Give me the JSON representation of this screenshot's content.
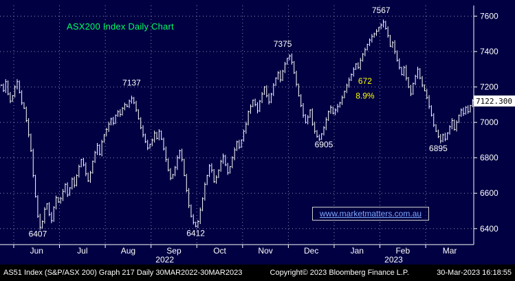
{
  "header": {
    "title": "ASX200 Index Daily Chart",
    "title_color": "#00ff66"
  },
  "watermark": {
    "text": "www.marketmatters.com.au"
  },
  "axis": {
    "last_price_label": "7122.300"
  },
  "footer": {
    "left": "AS51 Index (S&P/ASX 200) Graph 217  Daily 30MAR2022-30MAR2023",
    "center": "Copyright© 2023 Bloomberg Finance L.P.",
    "right": "30-Mar-2023 16:18:55"
  },
  "colors": {
    "background": "#000042",
    "bars": "#ffffff",
    "grid": "#8f8fc0",
    "title_green": "#00ff66",
    "annotation_yellow": "#ffff00",
    "watermark_blue": "#7fa8ff"
  },
  "chart_data": {
    "type": "ohlc-bar",
    "title": "ASX200 Index Daily Chart",
    "xlabel": "",
    "ylabel": "",
    "ylim": [
      6310,
      7660
    ],
    "y_gridlines": [
      7600,
      7400,
      7200,
      7000,
      6800,
      6600,
      6400
    ],
    "last_price": 7122.3,
    "months": [
      {
        "label": "",
        "closes": [
          7210,
          7180,
          7230,
          7160,
          7120,
          7150
        ]
      },
      {
        "label": "Jun",
        "closes": [
          7200,
          7230,
          7170,
          7110,
          7080,
          7010,
          6930,
          6840,
          6700,
          6580,
          6470,
          6407,
          6440,
          6510,
          6540,
          6480,
          6445,
          6520,
          6575,
          6550
        ]
      },
      {
        "label": "Jul",
        "closes": [
          6570,
          6610,
          6650,
          6590,
          6630,
          6680,
          6645,
          6700,
          6750,
          6790,
          6760,
          6710,
          6670,
          6715,
          6780,
          6830,
          6870,
          6820,
          6890,
          6930
        ]
      },
      {
        "label": "Aug",
        "closes": [
          6960,
          6990,
          7020,
          6995,
          7040,
          7060,
          7045,
          7080,
          7100,
          7090,
          7120,
          7137,
          7110,
          7070,
          7020,
          6970,
          6930,
          6890,
          6855,
          6875
        ]
      },
      {
        "label": "Sep",
        "closes": [
          6900,
          6940,
          6910,
          6950,
          6905,
          6850,
          6790,
          6730,
          6685,
          6705,
          6745,
          6800,
          6840,
          6790,
          6700,
          6615,
          6530,
          6470,
          6435,
          6412
        ]
      },
      {
        "label": "Oct",
        "closes": [
          6440,
          6505,
          6570,
          6650,
          6700,
          6755,
          6730,
          6665,
          6690,
          6730,
          6780,
          6810,
          6760,
          6715,
          6750,
          6800,
          6845,
          6890,
          6860,
          6900
        ]
      },
      {
        "label": "Nov",
        "closes": [
          6950,
          6990,
          7060,
          7090,
          7125,
          7100,
          7065,
          7120,
          7160,
          7200,
          7150,
          7115,
          7160,
          7210,
          7250,
          7280,
          7240,
          7290,
          7330,
          7360
        ]
      },
      {
        "label": "Dec",
        "closes": [
          7375,
          7340,
          7280,
          7215,
          7150,
          7095,
          7040,
          7000,
          7030,
          7070,
          6990,
          6950,
          6920,
          6905,
          6935,
          6970,
          7015,
          7060,
          7085,
          7050
        ]
      },
      {
        "label": "Jan",
        "closes": [
          7070,
          7090,
          7110,
          7140,
          7175,
          7210,
          7240,
          7270,
          7300,
          7330,
          7310,
          7350,
          7385,
          7410,
          7440,
          7465,
          7485,
          7500,
          7515,
          7535
        ]
      },
      {
        "label": "Feb",
        "closes": [
          7550,
          7567,
          7530,
          7490,
          7430,
          7450,
          7400,
          7350,
          7310,
          7270,
          7310,
          7250,
          7200,
          7160,
          7220,
          7260,
          7300,
          7250,
          7210,
          7180
        ]
      },
      {
        "label": "Mar",
        "closes": [
          7140,
          7090,
          7040,
          6985,
          6950,
          6920,
          6895,
          6930,
          6905,
          6940,
          6975,
          7010,
          6960,
          7000,
          7040,
          7070,
          7050,
          7085,
          7060,
          7095,
          7122.3
        ]
      }
    ],
    "years": [
      {
        "label": "2022",
        "center_index": 72
      },
      {
        "label": "2023",
        "center_index": 172
      }
    ],
    "annotations": [
      {
        "text": "6407",
        "index": 16,
        "price": 6355,
        "color": "#ffffff"
      },
      {
        "text": "7137",
        "index": 57,
        "price": 7208,
        "color": "#ffffff"
      },
      {
        "text": "6412",
        "index": 85,
        "price": 6358,
        "color": "#ffffff"
      },
      {
        "text": "7375",
        "index": 123,
        "price": 7428,
        "color": "#ffffff"
      },
      {
        "text": "6905",
        "index": 141,
        "price": 6858,
        "color": "#ffffff"
      },
      {
        "text": "7567",
        "index": 166,
        "price": 7618,
        "color": "#ffffff"
      },
      {
        "text": "672",
        "index": 159,
        "price": 7218,
        "color": "#ffff00"
      },
      {
        "text": "8.9%",
        "index": 159,
        "price": 7135,
        "color": "#ffff00"
      },
      {
        "text": "6895",
        "index": 191,
        "price": 6838,
        "color": "#ffffff"
      }
    ],
    "legend": [],
    "grid": "dashed"
  }
}
